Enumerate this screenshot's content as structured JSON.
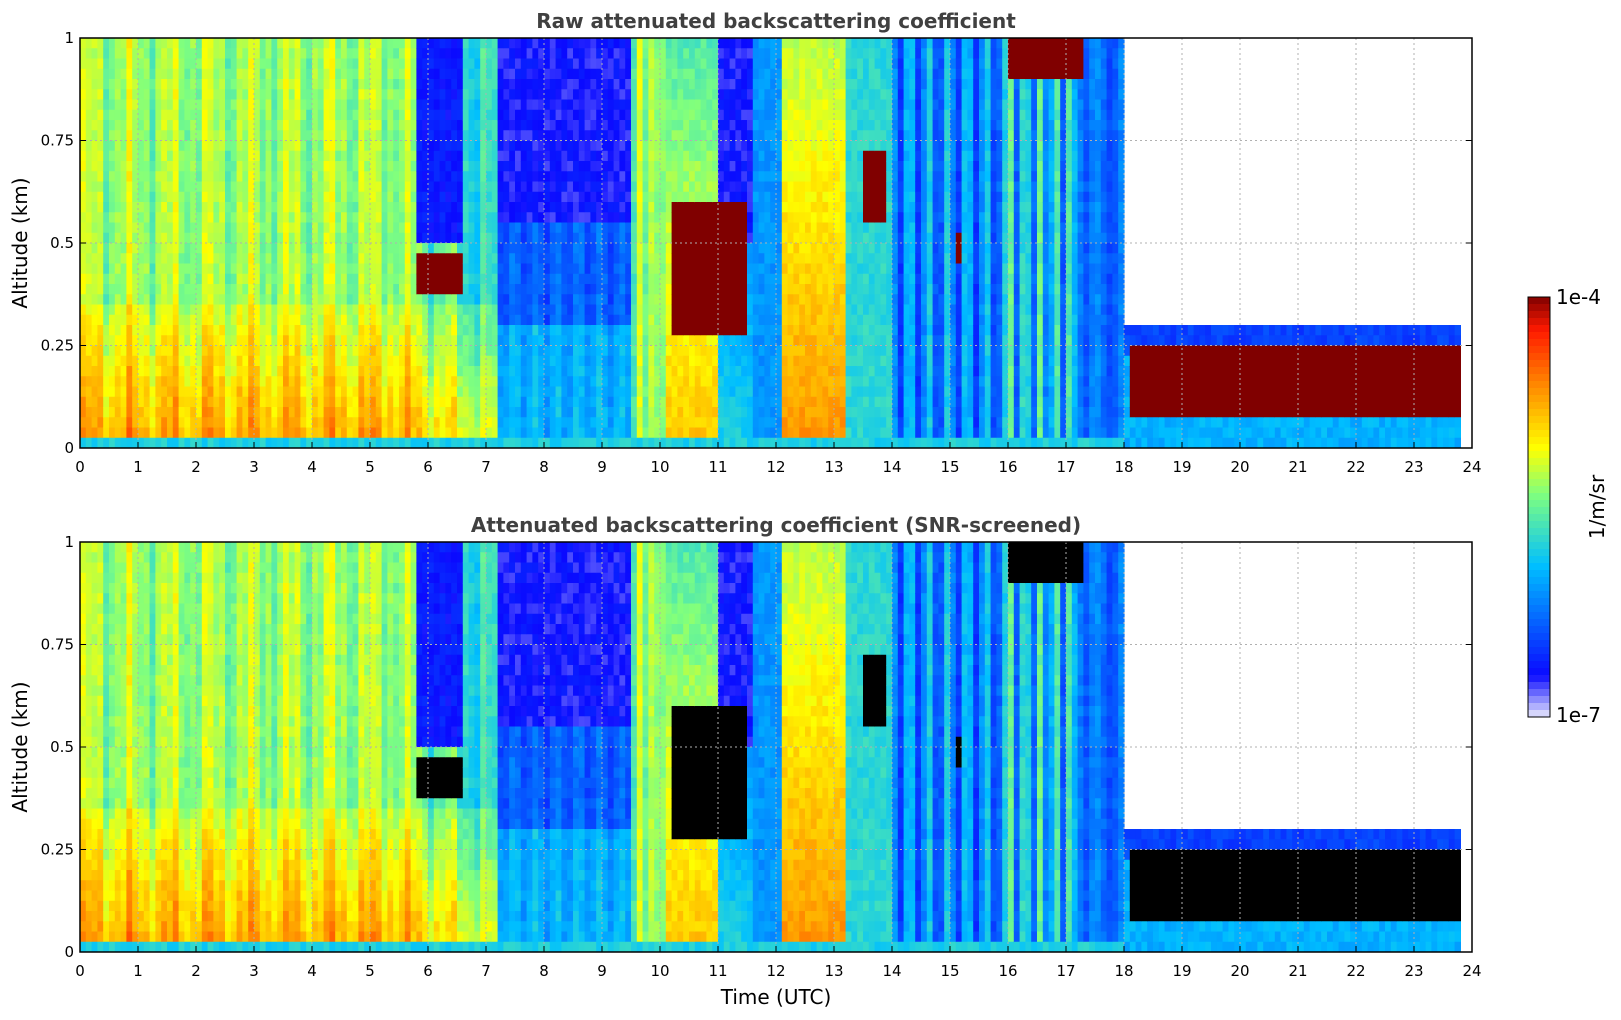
{
  "chart_data": [
    {
      "type": "heatmap",
      "title": "Raw attenuated backscattering coefficient",
      "xlabel": "",
      "ylabel": "Altitude (km)",
      "xlim": [
        0,
        24
      ],
      "ylim": [
        0,
        1
      ],
      "x_ticks": [
        "0",
        "1",
        "2",
        "3",
        "4",
        "5",
        "6",
        "7",
        "8",
        "9",
        "10",
        "11",
        "12",
        "13",
        "14",
        "15",
        "16",
        "17",
        "18",
        "19",
        "20",
        "21",
        "22",
        "23",
        "24"
      ],
      "y_ticks": [
        "0",
        "0.25",
        "0.5",
        "0.75",
        "1"
      ],
      "grid": true,
      "features": [
        {
          "x": [
            0,
            7.2
          ],
          "y": [
            0,
            1
          ],
          "level": "moderate-high",
          "note": "aerosol layer, strongest below 0.35 km"
        },
        {
          "x": [
            5.8,
            6.6
          ],
          "y": [
            0.37,
            0.48
          ],
          "level": "saturated"
        },
        {
          "x": [
            10.2,
            11.5
          ],
          "y": [
            0.28,
            0.6
          ],
          "level": "saturated"
        },
        {
          "x": [
            13.5,
            13.9
          ],
          "y": [
            0.55,
            0.72
          ],
          "level": "saturated"
        },
        {
          "x": [
            15.1,
            15.2
          ],
          "y": [
            0.45,
            0.52
          ],
          "level": "saturated"
        },
        {
          "x": [
            16.0,
            17.3
          ],
          "y": [
            0.9,
            1.0
          ],
          "level": "saturated"
        },
        {
          "x": [
            18.1,
            23.8
          ],
          "y": [
            0.06,
            0.25
          ],
          "level": "saturated"
        }
      ]
    },
    {
      "type": "heatmap",
      "title": "Attenuated backscattering coefficient (SNR-screened)",
      "xlabel": "Time (UTC)",
      "ylabel": "Altitude (km)",
      "xlim": [
        0,
        24
      ],
      "ylim": [
        0,
        1
      ],
      "x_ticks": [
        "0",
        "1",
        "2",
        "3",
        "4",
        "5",
        "6",
        "7",
        "8",
        "9",
        "10",
        "11",
        "12",
        "13",
        "14",
        "15",
        "16",
        "17",
        "18",
        "19",
        "20",
        "21",
        "22",
        "23",
        "24"
      ],
      "y_ticks": [
        "0",
        "0.25",
        "0.5",
        "0.75",
        "1"
      ],
      "grid": true,
      "features": [
        {
          "x": [
            0,
            7.2
          ],
          "y": [
            0,
            1
          ],
          "level": "moderate-high",
          "note": "aerosol layer, strongest below 0.35 km"
        },
        {
          "x": [
            5.8,
            6.6
          ],
          "y": [
            0.37,
            0.48
          ],
          "level": "screened"
        },
        {
          "x": [
            10.2,
            11.5
          ],
          "y": [
            0.28,
            0.6
          ],
          "level": "screened"
        },
        {
          "x": [
            13.5,
            13.9
          ],
          "y": [
            0.55,
            0.72
          ],
          "level": "screened"
        },
        {
          "x": [
            16.0,
            17.3
          ],
          "y": [
            0.9,
            1.0
          ],
          "level": "screened"
        },
        {
          "x": [
            18.1,
            23.8
          ],
          "y": [
            0.06,
            0.25
          ],
          "level": "screened"
        }
      ]
    }
  ],
  "colorbar": {
    "title": "1/m/sr",
    "max_label": "1e-4",
    "min_label": "1e-7",
    "colormap": "jet",
    "colors": [
      "#e8e8fc",
      "#0a0aff",
      "#00bfff",
      "#7fff7f",
      "#ffff00",
      "#ff8000",
      "#ff1a00",
      "#800000"
    ]
  },
  "screened_color": "#000000"
}
